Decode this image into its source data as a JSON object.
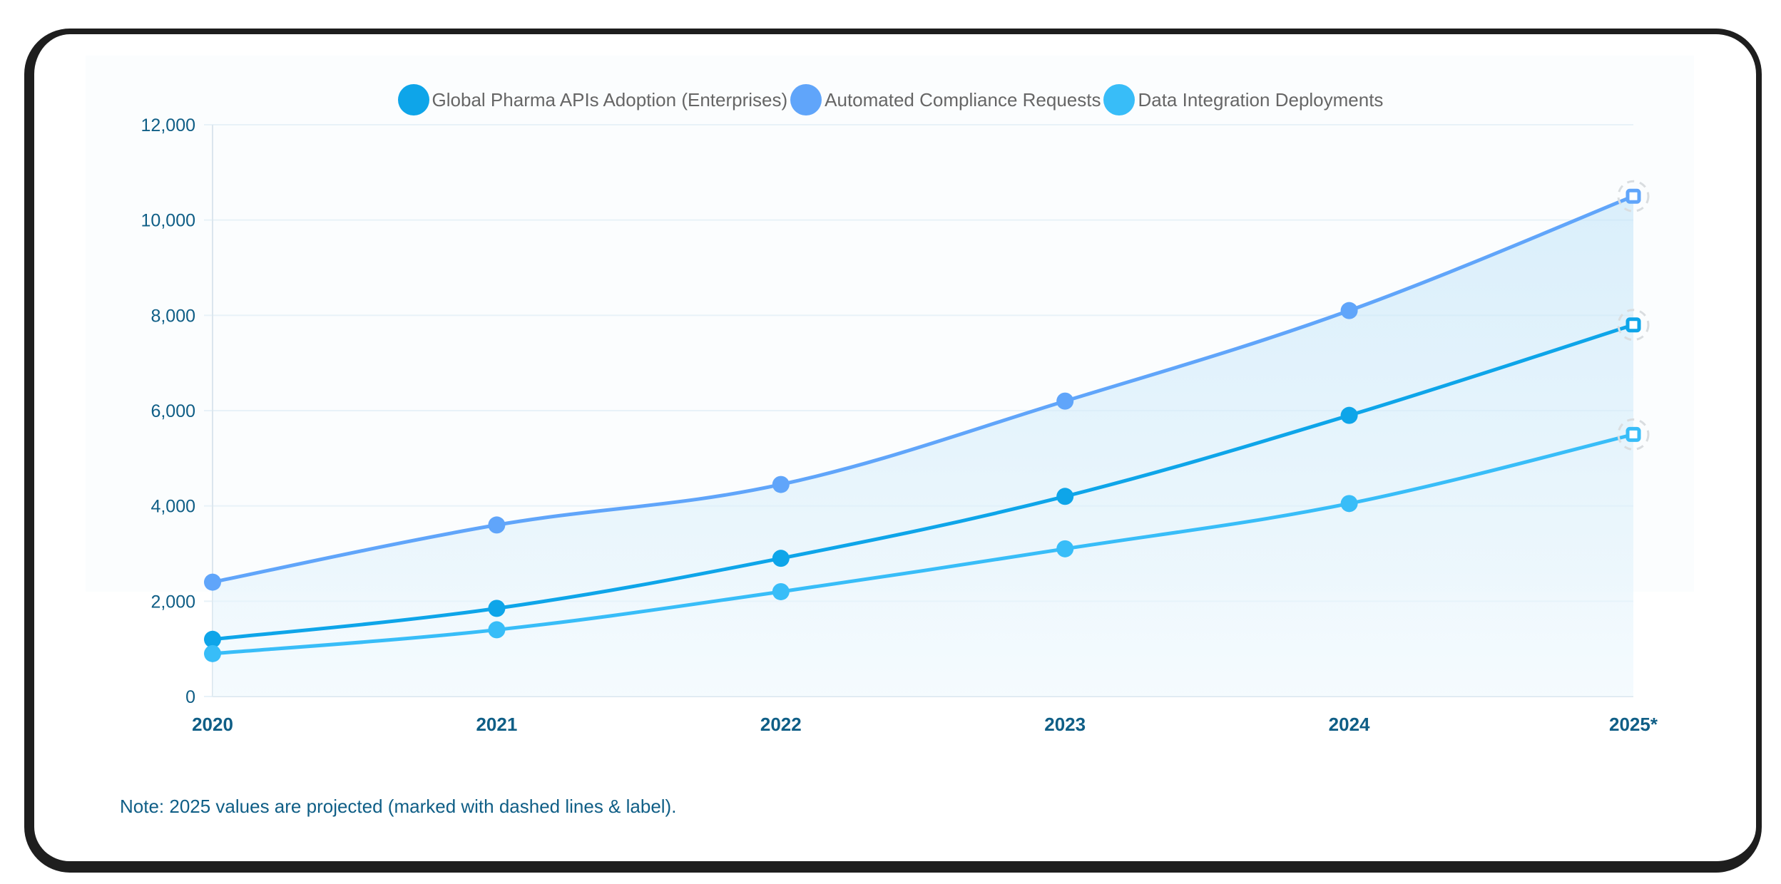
{
  "legend": [
    {
      "label": "Global Pharma APIs Adoption (Enterprises)",
      "color": "#0ea5e9"
    },
    {
      "label": "Automated Compliance Requests",
      "color": "#60a5fa"
    },
    {
      "label": "Data Integration Deployments",
      "color": "#38bdf8"
    }
  ],
  "note": "Note: 2025 values are projected (marked with dashed lines & label).",
  "colors": {
    "axis_text": "#0f5e86",
    "grid": "#e8f2f8",
    "axis_line": "#dbe6ee",
    "fill_top": "#bfe3f8",
    "fill_bottom": "#eef8fd"
  },
  "chart_data": {
    "type": "line",
    "title": "",
    "xlabel": "",
    "ylabel": "",
    "categories": [
      "2020",
      "2021",
      "2022",
      "2023",
      "2024",
      "2025*"
    ],
    "projected_index": 5,
    "ylim": [
      0,
      12000
    ],
    "yticks": [
      0,
      2000,
      4000,
      6000,
      8000,
      10000,
      12000
    ],
    "ytick_labels": [
      "0",
      "2,000",
      "4,000",
      "6,000",
      "8,000",
      "10,000",
      "12,000"
    ],
    "grid": true,
    "legend_position": "top",
    "series": [
      {
        "name": "Global Pharma APIs Adoption (Enterprises)",
        "color": "#0ea5e9",
        "values": [
          1200,
          1850,
          2900,
          4200,
          5900,
          7800
        ]
      },
      {
        "name": "Automated Compliance Requests",
        "color": "#60a5fa",
        "values": [
          2400,
          3600,
          4450,
          6200,
          8100,
          10500
        ]
      },
      {
        "name": "Data Integration Deployments",
        "color": "#38bdf8",
        "values": [
          900,
          1400,
          2200,
          3100,
          4050,
          5500
        ]
      }
    ]
  }
}
